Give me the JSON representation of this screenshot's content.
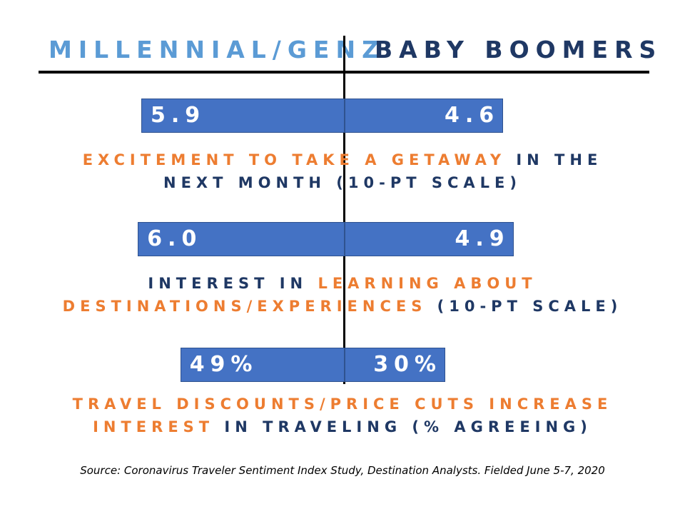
{
  "chart_data": {
    "type": "bar",
    "series": [
      {
        "name": "MILLENNIAL/GENZ",
        "values": [
          5.9,
          6.0,
          49
        ]
      },
      {
        "name": "BABY BOOMERS",
        "values": [
          4.6,
          4.9,
          30
        ]
      }
    ],
    "value_labels": {
      "left": [
        "5.9",
        "6.0",
        "49%"
      ],
      "right": [
        "4.6",
        "4.9",
        "30%"
      ]
    },
    "categories": [
      [
        {
          "text": "EXCITEMENT TO TAKE A GETAWAY",
          "color": "orange"
        },
        {
          "text": " IN THE NEXT MONTH (10-PT SCALE)",
          "color": "navy"
        }
      ],
      [
        {
          "text": "INTEREST IN ",
          "color": "navy"
        },
        {
          "text": "LEARNING ABOUT DESTINATIONS/EXPERIENCES",
          "color": "orange"
        },
        {
          "text": " (10-PT SCALE)",
          "color": "navy"
        }
      ],
      [
        {
          "text": "TRAVEL DISCOUNTS/PRICE CUTS INCREASE INTEREST",
          "color": "orange"
        },
        {
          "text": " IN TRAVELING (% AGREEING)",
          "color": "navy"
        }
      ]
    ],
    "source": "Source: Coronavirus Traveler Sentiment Index Study, Destination Analysts. Fielded June 5-7, 2020"
  },
  "colors": {
    "bar": "#4472c4",
    "left_header": "#5b9bd5",
    "right_header": "#1f3864",
    "orange": "#ed7d31",
    "navy": "#1f3864"
  }
}
